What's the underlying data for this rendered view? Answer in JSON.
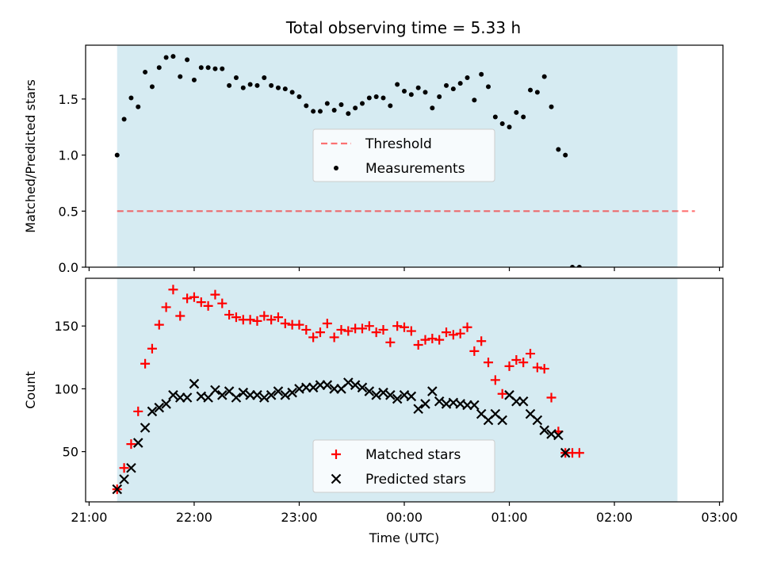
{
  "title": "Total observing time = 5.33 h",
  "colors": {
    "observing_band": "#add8e6",
    "threshold": "#ff0000",
    "measurements": "#000000",
    "matched": "#ff0000",
    "predicted": "#000000"
  },
  "chart_data": [
    {
      "type": "scatter",
      "panel": "top",
      "ylabel": "Matched/Predicted stars",
      "xlim": [
        "20:58",
        "03:02"
      ],
      "ylim": [
        0,
        1.98
      ],
      "yticks": [
        {
          "v": 0.0,
          "label": "0.0"
        },
        {
          "v": 0.5,
          "label": "0.5"
        },
        {
          "v": 1.0,
          "label": "1.0"
        },
        {
          "v": 1.5,
          "label": "1.5"
        }
      ],
      "observing_window": {
        "start": "21:16",
        "end": "02:36"
      },
      "threshold": {
        "name": "Threshold",
        "value": 0.5,
        "x_range": [
          "21:16",
          "02:46"
        ],
        "style": "dashed"
      },
      "legend": {
        "position": "center",
        "entries": [
          "Threshold",
          "Measurements"
        ]
      },
      "series": [
        {
          "name": "Measurements",
          "marker": "dot",
          "points": [
            [
              "21:16",
              1.0
            ],
            [
              "21:20",
              1.32
            ],
            [
              "21:24",
              1.51
            ],
            [
              "21:28",
              1.43
            ],
            [
              "21:32",
              1.74
            ],
            [
              "21:36",
              1.61
            ],
            [
              "21:40",
              1.78
            ],
            [
              "21:44",
              1.87
            ],
            [
              "21:48",
              1.88
            ],
            [
              "21:52",
              1.7
            ],
            [
              "21:56",
              1.85
            ],
            [
              "22:00",
              1.67
            ],
            [
              "22:04",
              1.78
            ],
            [
              "22:08",
              1.78
            ],
            [
              "22:12",
              1.77
            ],
            [
              "22:16",
              1.77
            ],
            [
              "22:20",
              1.62
            ],
            [
              "22:24",
              1.69
            ],
            [
              "22:28",
              1.6
            ],
            [
              "22:32",
              1.63
            ],
            [
              "22:36",
              1.62
            ],
            [
              "22:40",
              1.69
            ],
            [
              "22:44",
              1.62
            ],
            [
              "22:48",
              1.6
            ],
            [
              "22:52",
              1.59
            ],
            [
              "22:56",
              1.56
            ],
            [
              "23:00",
              1.52
            ],
            [
              "23:04",
              1.44
            ],
            [
              "23:08",
              1.39
            ],
            [
              "23:12",
              1.39
            ],
            [
              "23:16",
              1.46
            ],
            [
              "23:20",
              1.4
            ],
            [
              "23:24",
              1.45
            ],
            [
              "23:28",
              1.37
            ],
            [
              "23:32",
              1.42
            ],
            [
              "23:36",
              1.46
            ],
            [
              "23:40",
              1.51
            ],
            [
              "23:44",
              1.52
            ],
            [
              "23:48",
              1.51
            ],
            [
              "23:52",
              1.44
            ],
            [
              "23:56",
              1.63
            ],
            [
              "00:00",
              1.57
            ],
            [
              "00:04",
              1.54
            ],
            [
              "00:08",
              1.6
            ],
            [
              "00:12",
              1.56
            ],
            [
              "00:16",
              1.42
            ],
            [
              "00:20",
              1.52
            ],
            [
              "00:24",
              1.62
            ],
            [
              "00:28",
              1.59
            ],
            [
              "00:32",
              1.64
            ],
            [
              "00:36",
              1.69
            ],
            [
              "00:40",
              1.49
            ],
            [
              "00:44",
              1.72
            ],
            [
              "00:48",
              1.61
            ],
            [
              "00:52",
              1.34
            ],
            [
              "00:56",
              1.28
            ],
            [
              "01:00",
              1.25
            ],
            [
              "01:04",
              1.38
            ],
            [
              "01:08",
              1.34
            ],
            [
              "01:12",
              1.58
            ],
            [
              "01:16",
              1.56
            ],
            [
              "01:20",
              1.7
            ],
            [
              "01:24",
              1.43
            ],
            [
              "01:28",
              1.05
            ],
            [
              "01:32",
              1.0
            ],
            [
              "01:36",
              0.0
            ],
            [
              "01:40",
              0.0
            ]
          ]
        }
      ]
    },
    {
      "type": "scatter",
      "panel": "bottom",
      "xlabel": "Time (UTC)",
      "ylabel": "Count",
      "xlim": [
        "20:58",
        "03:02"
      ],
      "ylim": [
        10,
        188
      ],
      "yticks": [
        {
          "v": 50,
          "label": "50"
        },
        {
          "v": 100,
          "label": "100"
        },
        {
          "v": 150,
          "label": "150"
        }
      ],
      "xticks": [
        {
          "t": "21:00",
          "label": "21:00"
        },
        {
          "t": "22:00",
          "label": "22:00"
        },
        {
          "t": "23:00",
          "label": "23:00"
        },
        {
          "t": "00:00",
          "label": "00:00"
        },
        {
          "t": "01:00",
          "label": "01:00"
        },
        {
          "t": "02:00",
          "label": "02:00"
        },
        {
          "t": "03:00",
          "label": "03:00"
        }
      ],
      "observing_window": {
        "start": "21:16",
        "end": "02:36"
      },
      "legend": {
        "position": "lower center",
        "entries": [
          "Matched stars",
          "Predicted stars"
        ]
      },
      "series": [
        {
          "name": "Matched stars",
          "marker": "plus",
          "points": [
            [
              "21:16",
              20
            ],
            [
              "21:20",
              37
            ],
            [
              "21:24",
              56
            ],
            [
              "21:28",
              82
            ],
            [
              "21:32",
              120
            ],
            [
              "21:36",
              132
            ],
            [
              "21:40",
              151
            ],
            [
              "21:44",
              165
            ],
            [
              "21:48",
              179
            ],
            [
              "21:52",
              158
            ],
            [
              "21:56",
              172
            ],
            [
              "22:00",
              173
            ],
            [
              "22:04",
              169
            ],
            [
              "22:08",
              166
            ],
            [
              "22:12",
              175
            ],
            [
              "22:16",
              168
            ],
            [
              "22:20",
              159
            ],
            [
              "22:24",
              157
            ],
            [
              "22:28",
              155
            ],
            [
              "22:32",
              155
            ],
            [
              "22:36",
              154
            ],
            [
              "22:40",
              158
            ],
            [
              "22:44",
              155
            ],
            [
              "22:48",
              157
            ],
            [
              "22:52",
              152
            ],
            [
              "22:56",
              151
            ],
            [
              "23:00",
              151
            ],
            [
              "23:04",
              147
            ],
            [
              "23:08",
              141
            ],
            [
              "23:12",
              145
            ],
            [
              "23:16",
              152
            ],
            [
              "23:20",
              141
            ],
            [
              "23:24",
              147
            ],
            [
              "23:28",
              146
            ],
            [
              "23:32",
              148
            ],
            [
              "23:36",
              148
            ],
            [
              "23:40",
              150
            ],
            [
              "23:44",
              145
            ],
            [
              "23:48",
              147
            ],
            [
              "23:52",
              137
            ],
            [
              "23:56",
              150
            ],
            [
              "00:00",
              149
            ],
            [
              "00:04",
              146
            ],
            [
              "00:08",
              135
            ],
            [
              "00:12",
              139
            ],
            [
              "00:16",
              140
            ],
            [
              "00:20",
              139
            ],
            [
              "00:24",
              145
            ],
            [
              "00:28",
              143
            ],
            [
              "00:32",
              144
            ],
            [
              "00:36",
              149
            ],
            [
              "00:40",
              130
            ],
            [
              "00:44",
              138
            ],
            [
              "00:48",
              121
            ],
            [
              "00:52",
              107
            ],
            [
              "00:56",
              96
            ],
            [
              "01:00",
              118
            ],
            [
              "01:04",
              123
            ],
            [
              "01:08",
              121
            ],
            [
              "01:12",
              128
            ],
            [
              "01:16",
              117
            ],
            [
              "01:20",
              116
            ],
            [
              "01:24",
              93
            ],
            [
              "01:28",
              66
            ],
            [
              "01:32",
              49
            ],
            [
              "01:36",
              49
            ],
            [
              "01:40",
              49
            ]
          ]
        },
        {
          "name": "Predicted stars",
          "marker": "x",
          "points": [
            [
              "21:16",
              20
            ],
            [
              "21:20",
              28
            ],
            [
              "21:24",
              37
            ],
            [
              "21:28",
              57
            ],
            [
              "21:32",
              69
            ],
            [
              "21:36",
              82
            ],
            [
              "21:40",
              85
            ],
            [
              "21:44",
              88
            ],
            [
              "21:48",
              95
            ],
            [
              "21:52",
              93
            ],
            [
              "21:56",
              93
            ],
            [
              "22:00",
              104
            ],
            [
              "22:04",
              94
            ],
            [
              "22:08",
              93
            ],
            [
              "22:12",
              99
            ],
            [
              "22:16",
              95
            ],
            [
              "22:20",
              98
            ],
            [
              "22:24",
              93
            ],
            [
              "22:28",
              97
            ],
            [
              "22:32",
              95
            ],
            [
              "22:36",
              95
            ],
            [
              "22:40",
              93
            ],
            [
              "22:44",
              95
            ],
            [
              "22:48",
              98
            ],
            [
              "22:52",
              95
            ],
            [
              "22:56",
              97
            ],
            [
              "23:00",
              100
            ],
            [
              "23:04",
              101
            ],
            [
              "23:08",
              101
            ],
            [
              "23:12",
              103
            ],
            [
              "23:16",
              103
            ],
            [
              "23:20",
              100
            ],
            [
              "23:24",
              100
            ],
            [
              "23:28",
              105
            ],
            [
              "23:32",
              103
            ],
            [
              "23:36",
              101
            ],
            [
              "23:40",
              98
            ],
            [
              "23:44",
              95
            ],
            [
              "23:48",
              97
            ],
            [
              "23:52",
              95
            ],
            [
              "23:56",
              92
            ],
            [
              "00:00",
              95
            ],
            [
              "00:04",
              94
            ],
            [
              "00:08",
              84
            ],
            [
              "00:12",
              88
            ],
            [
              "00:16",
              98
            ],
            [
              "00:20",
              90
            ],
            [
              "00:24",
              88
            ],
            [
              "00:28",
              89
            ],
            [
              "00:32",
              88
            ],
            [
              "00:36",
              87
            ],
            [
              "00:40",
              87
            ],
            [
              "00:44",
              80
            ],
            [
              "00:48",
              75
            ],
            [
              "00:52",
              80
            ],
            [
              "00:56",
              75
            ],
            [
              "01:00",
              95
            ],
            [
              "01:04",
              90
            ],
            [
              "01:08",
              90
            ],
            [
              "01:12",
              80
            ],
            [
              "01:16",
              75
            ],
            [
              "01:20",
              67
            ],
            [
              "01:24",
              64
            ],
            [
              "01:28",
              63
            ],
            [
              "01:32",
              49
            ]
          ]
        }
      ]
    }
  ]
}
